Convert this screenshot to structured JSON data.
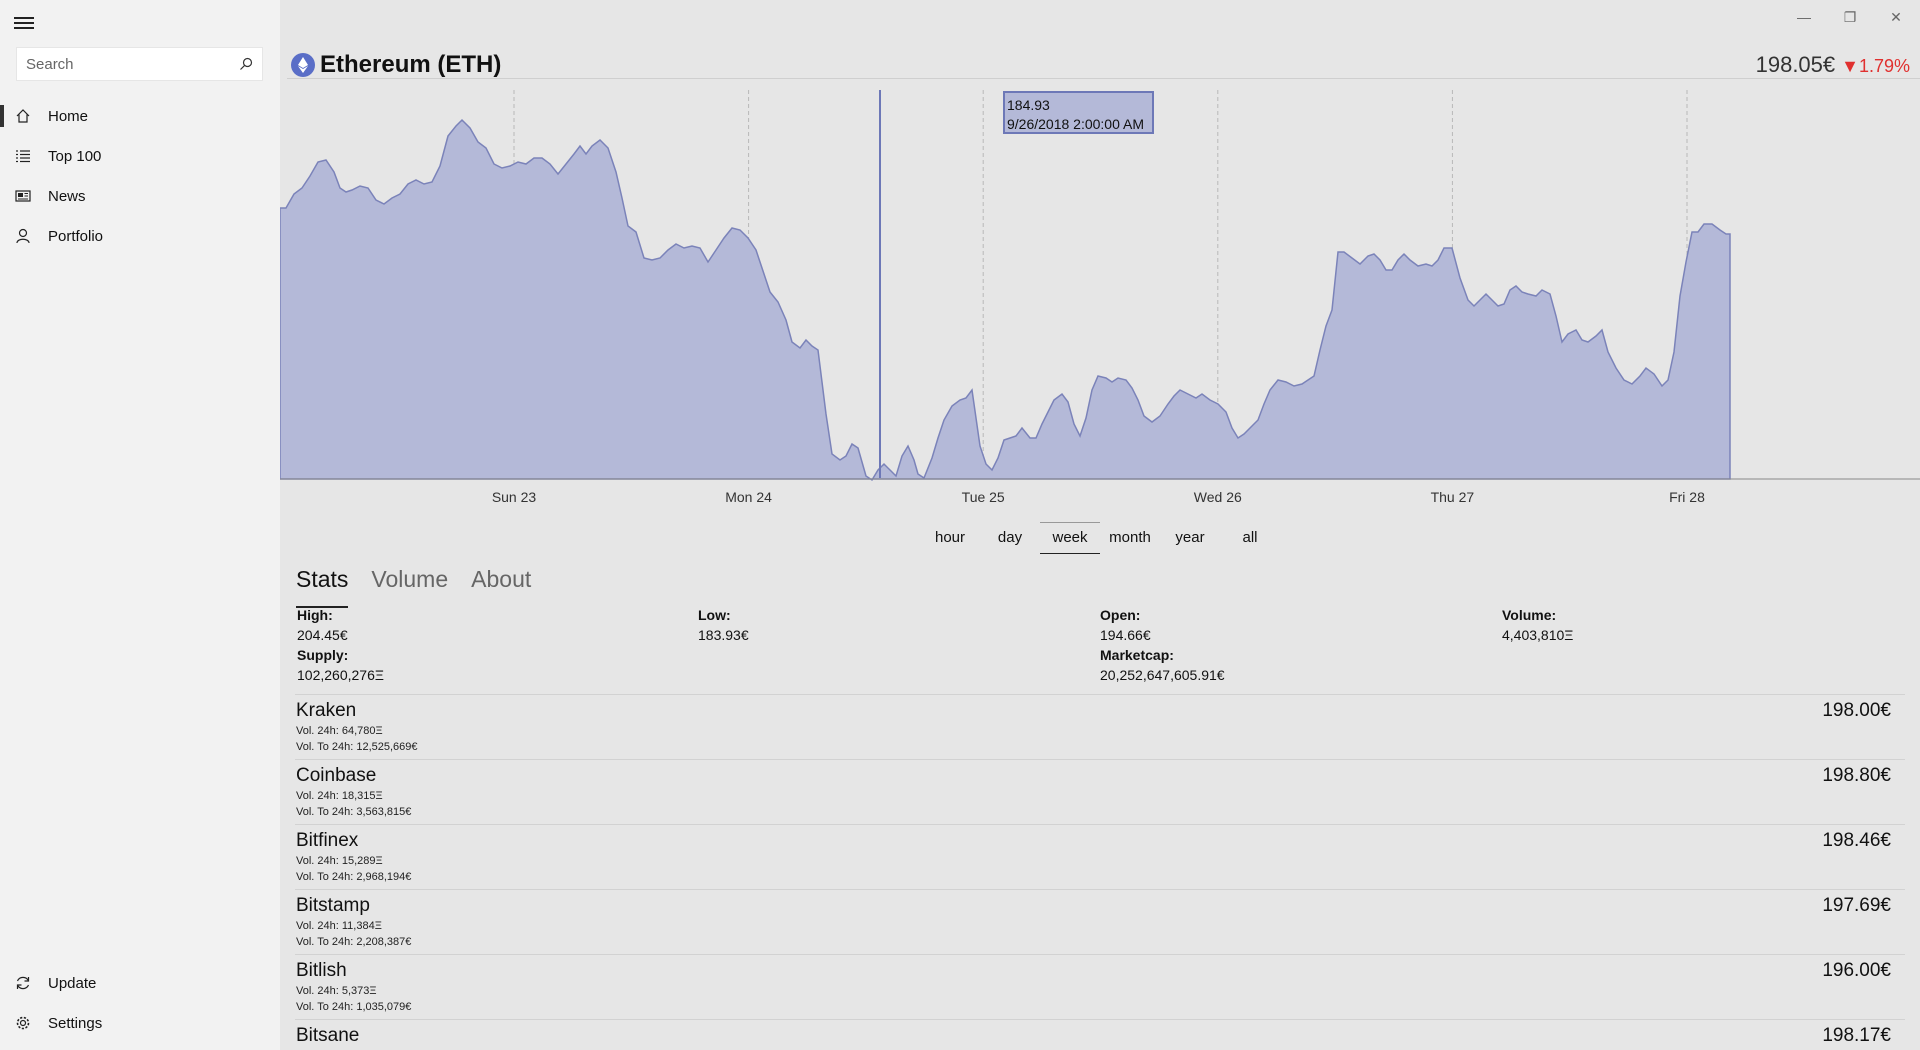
{
  "sidebar": {
    "search_placeholder": "Search",
    "items": [
      {
        "label": "Home"
      },
      {
        "label": "Top 100"
      },
      {
        "label": "News"
      },
      {
        "label": "Portfolio"
      }
    ],
    "bottom_items": [
      {
        "label": "Update"
      },
      {
        "label": "Settings"
      }
    ]
  },
  "header": {
    "title": "Ethereum (ETH)",
    "price": "198.05€",
    "change": "▼1.79%"
  },
  "chart_data": {
    "type": "area",
    "x_ticks": [
      "Sun 23",
      "Mon 24",
      "Tue 25",
      "Wed 26",
      "Thu 27",
      "Fri 28"
    ],
    "tooltip": {
      "value": "184.93",
      "date": "9/26/2018 2:00:00 AM"
    },
    "color": "#b4b9d8",
    "stroke": "#7b83b9"
  },
  "time_ranges": [
    "hour",
    "day",
    "week",
    "month",
    "year",
    "all"
  ],
  "active_range": "week",
  "tabs": [
    "Stats",
    "Volume",
    "About"
  ],
  "stats": {
    "high_label": "High:",
    "high": "204.45€",
    "low_label": "Low:",
    "low": "183.93€",
    "open_label": "Open:",
    "open": "194.66€",
    "volume_label": "Volume:",
    "volume": "4,403,810Ξ",
    "supply_label": "Supply:",
    "supply": "102,260,276Ξ",
    "marketcap_label": "Marketcap:",
    "marketcap": "20,252,647,605.91€"
  },
  "exchanges": [
    {
      "name": "Kraken",
      "vol": "Vol. 24h: 64,780Ξ",
      "volto": "Vol. To 24h: 12,525,669€",
      "price": "198.00€"
    },
    {
      "name": "Coinbase",
      "vol": "Vol. 24h: 18,315Ξ",
      "volto": "Vol. To 24h: 3,563,815€",
      "price": "198.80€"
    },
    {
      "name": "Bitfinex",
      "vol": "Vol. 24h: 15,289Ξ",
      "volto": "Vol. To 24h: 2,968,194€",
      "price": "198.46€"
    },
    {
      "name": "Bitstamp",
      "vol": "Vol. 24h: 11,384Ξ",
      "volto": "Vol. To 24h: 2,208,387€",
      "price": "197.69€"
    },
    {
      "name": "Bitlish",
      "vol": "Vol. 24h: 5,373Ξ",
      "volto": "Vol. To 24h: 1,035,079€",
      "price": "196.00€"
    },
    {
      "name": "Bitsane",
      "vol": "",
      "volto": "",
      "price": "198.17€"
    }
  ]
}
